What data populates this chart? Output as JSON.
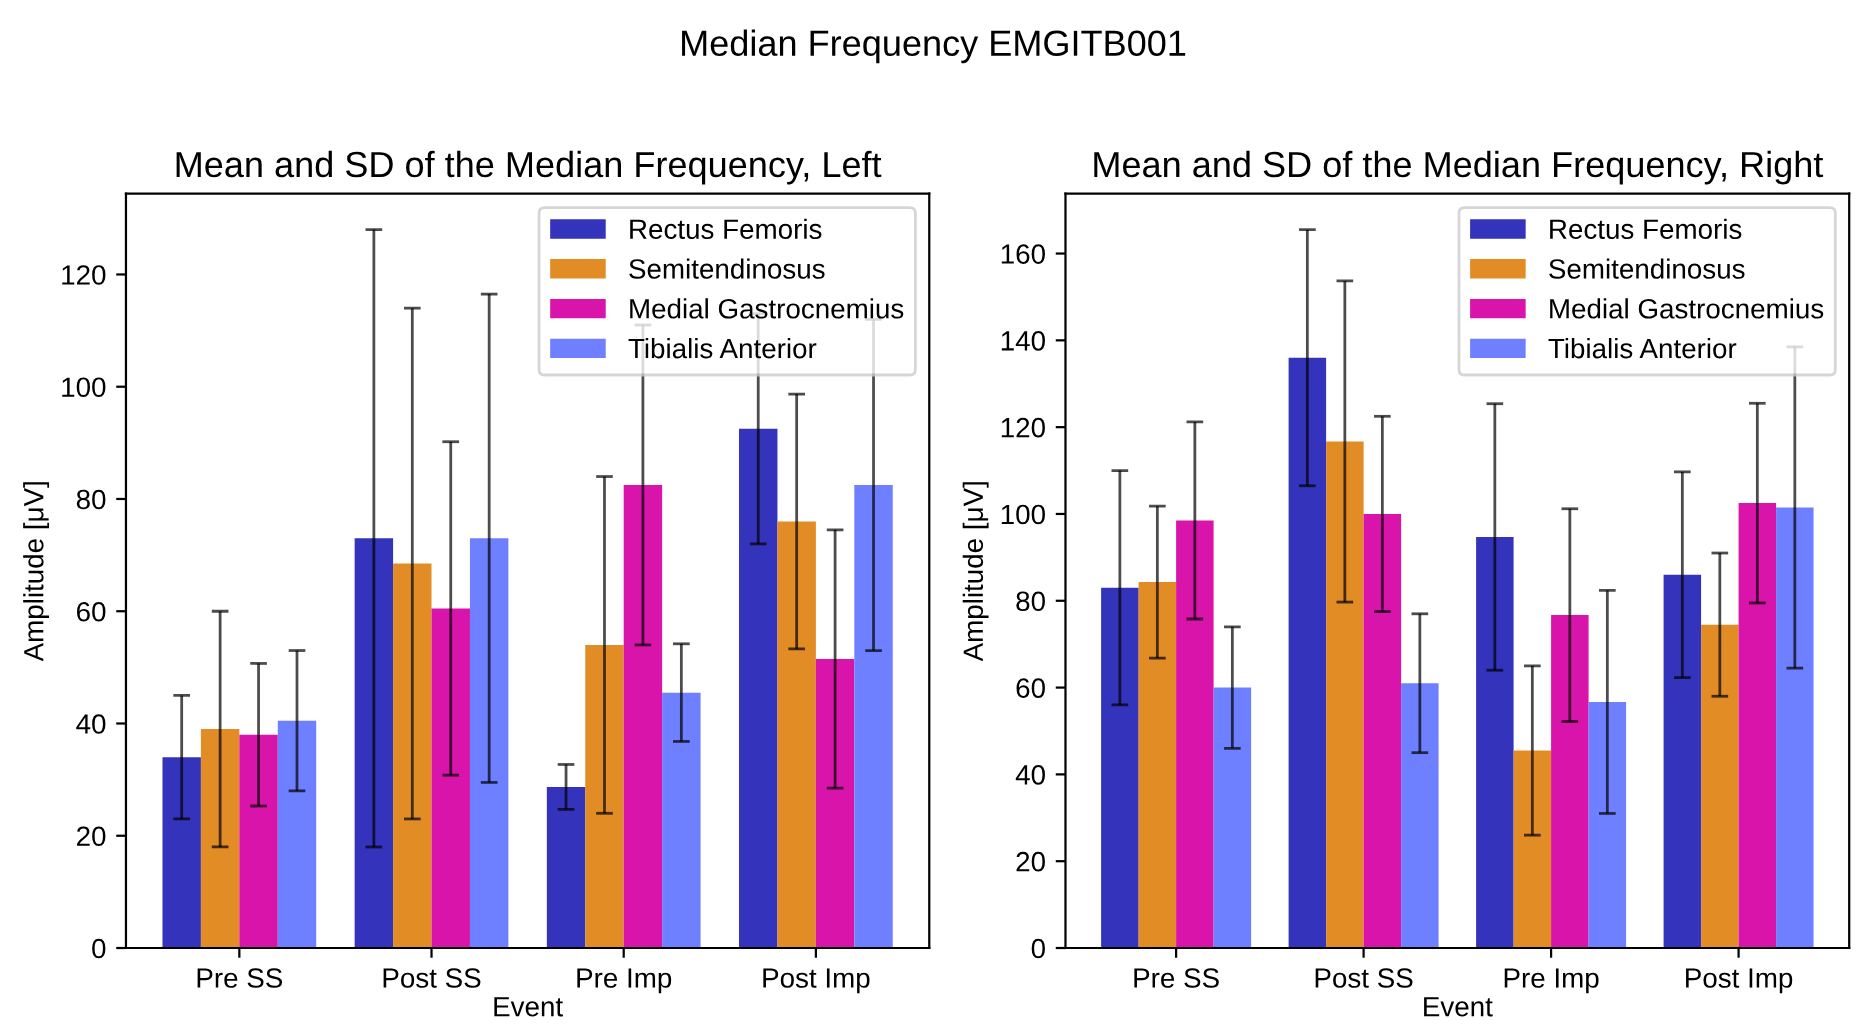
{
  "chart_data": [
    {
      "type": "bar",
      "annotations": [
        "Median Frequency EMGITB001"
      ],
      "title": "Mean and SD of the Median Frequency, Left",
      "xlabel": "Event",
      "ylabel": "Amplitude [μV]",
      "categories": [
        "Pre SS",
        "Post SS",
        "Pre Imp",
        "Post Imp"
      ],
      "ylim": [
        0,
        134.4
      ],
      "yticks": [
        0,
        20,
        40,
        60,
        80,
        100,
        120
      ],
      "legend": "top right",
      "grid": false,
      "series": [
        {
          "name": "Rectus Femoris",
          "color": "#2f2fba",
          "values": [
            34,
            73,
            28.7,
            92.5
          ],
          "errors": [
            11,
            55,
            4,
            20.5
          ]
        },
        {
          "name": "Semitendinosus",
          "color": "#e08a20",
          "values": [
            39,
            68.5,
            54,
            76
          ],
          "errors": [
            21,
            45.5,
            30,
            22.7
          ]
        },
        {
          "name": "Medial Gastrocnemius",
          "color": "#d80fa8",
          "values": [
            38,
            60.5,
            82.5,
            51.5
          ],
          "errors": [
            12.7,
            29.7,
            28.5,
            23
          ]
        },
        {
          "name": "Tibialis Anterior",
          "color": "#6b7cff",
          "values": [
            40.5,
            73,
            45.5,
            82.5
          ],
          "errors": [
            12.5,
            43.5,
            8.7,
            29.5
          ]
        }
      ]
    },
    {
      "type": "bar",
      "title": "Mean and SD of the Median Frequency, Right",
      "xlabel": "Event",
      "ylabel": "Amplitude [μV]",
      "categories": [
        "Pre SS",
        "Post SS",
        "Pre Imp",
        "Post Imp"
      ],
      "ylim": [
        0,
        173.8
      ],
      "yticks": [
        0,
        20,
        40,
        60,
        80,
        100,
        120,
        140,
        160
      ],
      "legend": "top right",
      "grid": false,
      "series": [
        {
          "name": "Rectus Femoris",
          "color": "#2f2fba",
          "values": [
            83,
            136,
            94.7,
            86
          ],
          "errors": [
            27,
            29.5,
            30.7,
            23.7
          ]
        },
        {
          "name": "Semitendinosus",
          "color": "#e08a20",
          "values": [
            84.3,
            116.7,
            45.5,
            74.5
          ],
          "errors": [
            17.5,
            37,
            19.5,
            16.5
          ]
        },
        {
          "name": "Medial Gastrocnemius",
          "color": "#d80fa8",
          "values": [
            98.5,
            100,
            76.7,
            102.5
          ],
          "errors": [
            22.7,
            22.5,
            24.5,
            23
          ]
        },
        {
          "name": "Tibialis Anterior",
          "color": "#6b7cff",
          "values": [
            60,
            61,
            56.7,
            101.5
          ],
          "errors": [
            14,
            16,
            25.7,
            37
          ]
        }
      ]
    }
  ]
}
